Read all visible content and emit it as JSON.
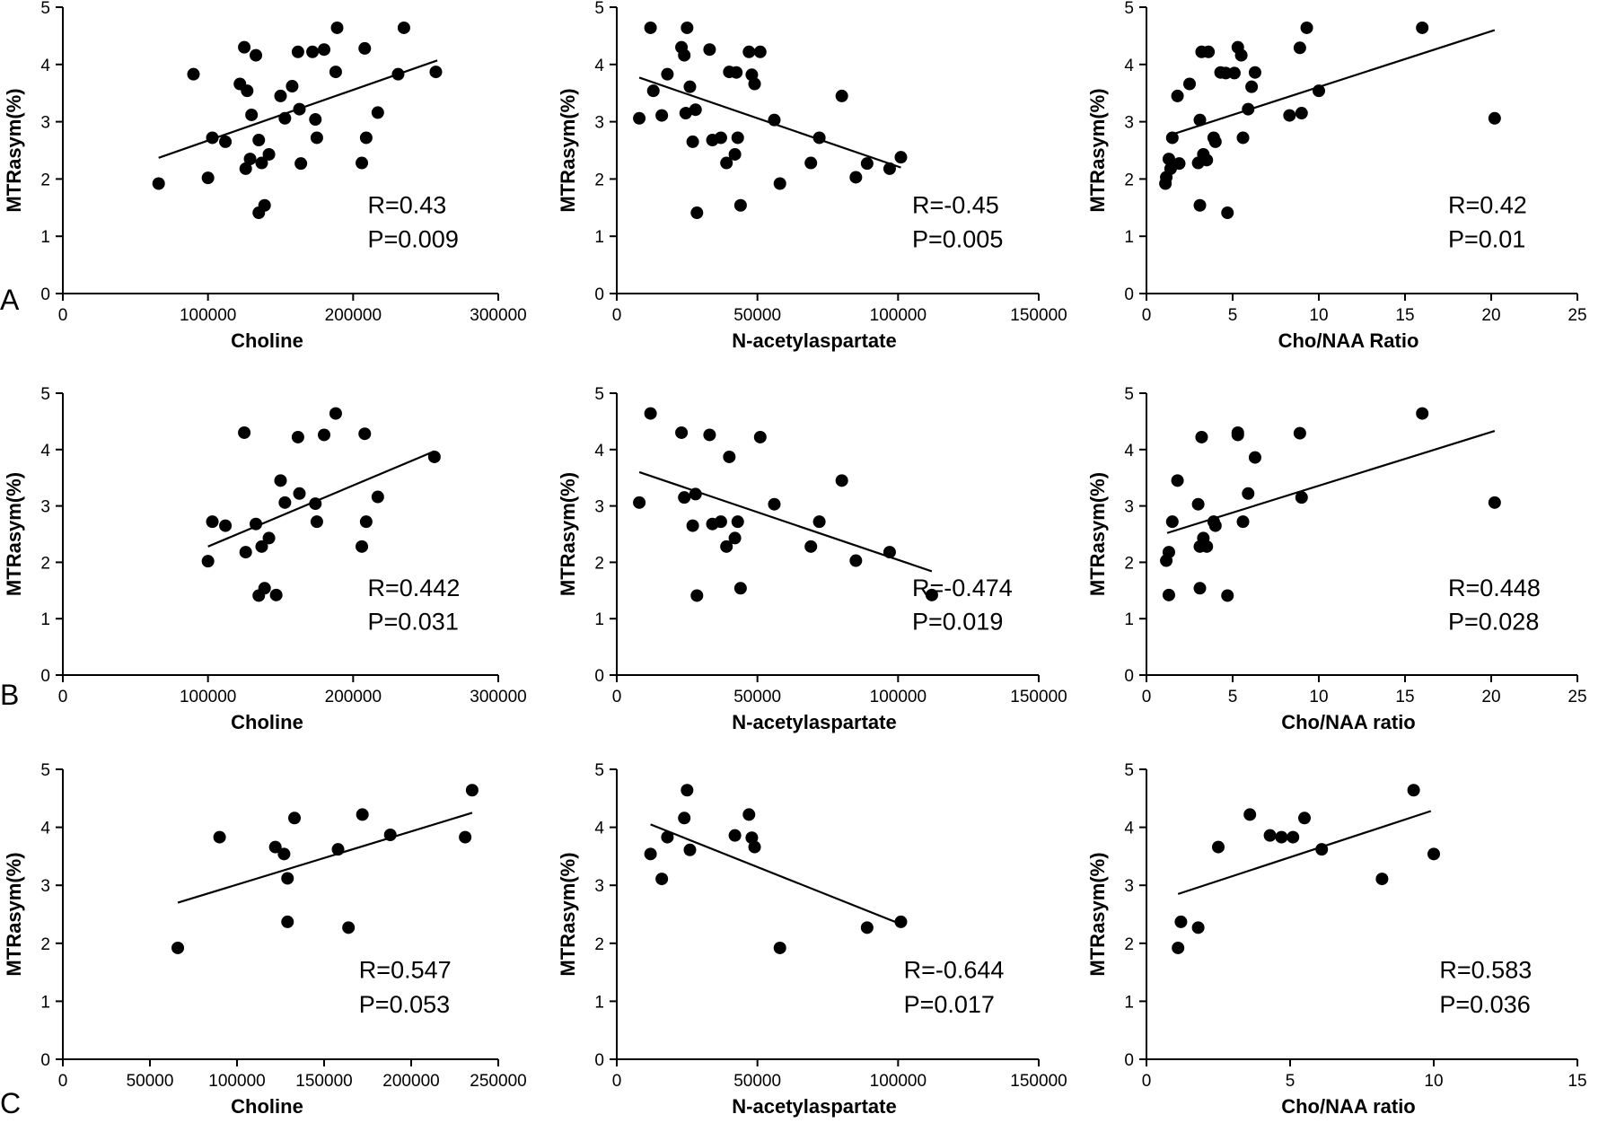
{
  "row_labels": [
    "A",
    "B",
    "C"
  ],
  "chart_data": [
    {
      "type": "scatter",
      "row": "A",
      "xlabel": "Choline",
      "ylabel": "MTRasym(%)",
      "xlim": [
        0,
        300000
      ],
      "ylim": [
        0,
        5
      ],
      "xticks": [
        0,
        100000,
        200000,
        300000
      ],
      "yticks": [
        0,
        1,
        2,
        3,
        4,
        5
      ],
      "r_text": "R=0.43",
      "p_text": "P=0.009",
      "fit": [
        [
          66000,
          2.37
        ],
        [
          258000,
          4.07
        ]
      ],
      "points": [
        [
          66000,
          1.92
        ],
        [
          90000,
          3.83
        ],
        [
          100000,
          2.02
        ],
        [
          103000,
          2.72
        ],
        [
          112000,
          2.65
        ],
        [
          122000,
          3.66
        ],
        [
          125000,
          4.3
        ],
        [
          126000,
          2.18
        ],
        [
          127000,
          3.54
        ],
        [
          129000,
          2.35
        ],
        [
          130000,
          3.12
        ],
        [
          133000,
          4.16
        ],
        [
          135000,
          2.68
        ],
        [
          135000,
          1.41
        ],
        [
          137000,
          2.28
        ],
        [
          139000,
          1.54
        ],
        [
          142000,
          2.43
        ],
        [
          150000,
          3.45
        ],
        [
          153000,
          3.06
        ],
        [
          158000,
          3.62
        ],
        [
          162000,
          4.22
        ],
        [
          163000,
          3.22
        ],
        [
          164000,
          2.27
        ],
        [
          172000,
          4.22
        ],
        [
          174000,
          3.04
        ],
        [
          175000,
          2.72
        ],
        [
          180000,
          4.26
        ],
        [
          188000,
          3.87
        ],
        [
          189000,
          4.64
        ],
        [
          206000,
          2.28
        ],
        [
          208000,
          4.28
        ],
        [
          209000,
          2.72
        ],
        [
          217000,
          3.16
        ],
        [
          231000,
          3.83
        ],
        [
          235000,
          4.64
        ],
        [
          257000,
          3.87
        ]
      ]
    },
    {
      "type": "scatter",
      "row": "A",
      "xlabel": "N-acetylaspartate",
      "ylabel": "MTRasym(%)",
      "xlim": [
        0,
        150000
      ],
      "ylim": [
        0,
        5
      ],
      "xticks": [
        0,
        50000,
        100000,
        150000
      ],
      "yticks": [
        0,
        1,
        2,
        3,
        4,
        5
      ],
      "r_text": "R=-0.45",
      "p_text": "P=0.005",
      "fit": [
        [
          8000,
          3.77
        ],
        [
          101000,
          2.2
        ]
      ],
      "points": [
        [
          8000,
          3.06
        ],
        [
          12000,
          4.64
        ],
        [
          13000,
          3.54
        ],
        [
          16000,
          3.11
        ],
        [
          18000,
          3.83
        ],
        [
          23000,
          4.3
        ],
        [
          24000,
          4.16
        ],
        [
          24500,
          3.15
        ],
        [
          25000,
          4.64
        ],
        [
          26000,
          3.61
        ],
        [
          27000,
          2.65
        ],
        [
          28000,
          3.21
        ],
        [
          28500,
          1.41
        ],
        [
          33000,
          4.26
        ],
        [
          34000,
          2.68
        ],
        [
          37000,
          2.72
        ],
        [
          39000,
          2.28
        ],
        [
          40000,
          3.87
        ],
        [
          42000,
          2.43
        ],
        [
          42500,
          3.86
        ],
        [
          43000,
          2.72
        ],
        [
          44000,
          1.54
        ],
        [
          47000,
          4.22
        ],
        [
          48000,
          3.82
        ],
        [
          49000,
          3.66
        ],
        [
          51000,
          4.22
        ],
        [
          56000,
          3.03
        ],
        [
          58000,
          1.92
        ],
        [
          69000,
          2.28
        ],
        [
          72000,
          2.72
        ],
        [
          80000,
          3.45
        ],
        [
          85000,
          2.03
        ],
        [
          89000,
          2.27
        ],
        [
          97000,
          2.18
        ],
        [
          101000,
          2.38
        ]
      ]
    },
    {
      "type": "scatter",
      "row": "A",
      "xlabel": "Cho/NAA Ratio",
      "ylabel": "MTRasym(%)",
      "xlim": [
        0,
        25
      ],
      "ylim": [
        0,
        5
      ],
      "xticks": [
        0,
        5,
        10,
        15,
        20,
        25
      ],
      "yticks": [
        0,
        1,
        2,
        3,
        4,
        5
      ],
      "r_text": "R=0.42",
      "p_text": "P=0.01",
      "fit": [
        [
          1.2,
          2.75
        ],
        [
          20.2,
          4.6
        ]
      ],
      "points": [
        [
          1.1,
          1.92
        ],
        [
          1.15,
          2.03
        ],
        [
          1.3,
          2.35
        ],
        [
          1.4,
          2.18
        ],
        [
          1.5,
          2.72
        ],
        [
          1.8,
          3.45
        ],
        [
          1.9,
          2.27
        ],
        [
          2.5,
          3.66
        ],
        [
          3.0,
          2.28
        ],
        [
          3.1,
          3.03
        ],
        [
          3.1,
          1.54
        ],
        [
          3.2,
          4.22
        ],
        [
          3.3,
          2.43
        ],
        [
          3.5,
          2.33
        ],
        [
          3.6,
          4.22
        ],
        [
          3.9,
          2.72
        ],
        [
          4.0,
          2.65
        ],
        [
          4.3,
          3.86
        ],
        [
          4.6,
          3.85
        ],
        [
          4.7,
          1.41
        ],
        [
          5.1,
          3.85
        ],
        [
          5.3,
          4.3
        ],
        [
          5.5,
          4.16
        ],
        [
          5.6,
          2.72
        ],
        [
          5.9,
          3.22
        ],
        [
          6.1,
          3.61
        ],
        [
          6.3,
          3.86
        ],
        [
          8.3,
          3.11
        ],
        [
          8.9,
          4.29
        ],
        [
          9.0,
          3.15
        ],
        [
          9.3,
          4.64
        ],
        [
          10.0,
          3.54
        ],
        [
          16.0,
          4.64
        ],
        [
          20.2,
          3.06
        ]
      ]
    },
    {
      "type": "scatter",
      "row": "B",
      "xlabel": "Choline",
      "ylabel": "MTRasym(%)",
      "xlim": [
        0,
        300000
      ],
      "ylim": [
        0,
        5
      ],
      "xticks": [
        0,
        100000,
        200000,
        300000
      ],
      "yticks": [
        0,
        1,
        2,
        3,
        4,
        5
      ],
      "r_text": "R=0.442",
      "p_text": "P=0.031",
      "fit": [
        [
          100000,
          2.28
        ],
        [
          256000,
          3.97
        ]
      ],
      "points": [
        [
          100000,
          2.02
        ],
        [
          103000,
          2.72
        ],
        [
          112000,
          2.65
        ],
        [
          125000,
          4.3
        ],
        [
          126000,
          2.18
        ],
        [
          133000,
          2.68
        ],
        [
          135000,
          1.41
        ],
        [
          137000,
          2.28
        ],
        [
          139000,
          1.54
        ],
        [
          142000,
          2.43
        ],
        [
          147000,
          1.42
        ],
        [
          150000,
          3.45
        ],
        [
          153000,
          3.06
        ],
        [
          162000,
          4.22
        ],
        [
          163000,
          3.22
        ],
        [
          174000,
          3.04
        ],
        [
          175000,
          2.72
        ],
        [
          180000,
          4.26
        ],
        [
          188000,
          4.64
        ],
        [
          206000,
          2.28
        ],
        [
          208000,
          4.28
        ],
        [
          209000,
          2.72
        ],
        [
          217000,
          3.16
        ],
        [
          256000,
          3.87
        ]
      ]
    },
    {
      "type": "scatter",
      "row": "B",
      "xlabel": "N-acetylaspartate",
      "ylabel": "MTRasym(%)",
      "xlim": [
        0,
        150000
      ],
      "ylim": [
        0,
        5
      ],
      "xticks": [
        0,
        50000,
        100000,
        150000
      ],
      "yticks": [
        0,
        1,
        2,
        3,
        4,
        5
      ],
      "r_text": "R=-0.474",
      "p_text": "P=0.019",
      "fit": [
        [
          8000,
          3.6
        ],
        [
          112000,
          1.84
        ]
      ],
      "points": [
        [
          8000,
          3.06
        ],
        [
          12000,
          4.64
        ],
        [
          23000,
          4.3
        ],
        [
          24000,
          3.15
        ],
        [
          27000,
          2.65
        ],
        [
          28000,
          3.21
        ],
        [
          28500,
          1.41
        ],
        [
          33000,
          4.26
        ],
        [
          34000,
          2.68
        ],
        [
          37000,
          2.72
        ],
        [
          39000,
          2.28
        ],
        [
          40000,
          3.87
        ],
        [
          42000,
          2.43
        ],
        [
          43000,
          2.72
        ],
        [
          44000,
          1.54
        ],
        [
          51000,
          4.22
        ],
        [
          56000,
          3.03
        ],
        [
          69000,
          2.28
        ],
        [
          72000,
          2.72
        ],
        [
          80000,
          3.45
        ],
        [
          85000,
          2.03
        ],
        [
          97000,
          2.18
        ],
        [
          112000,
          1.42
        ]
      ]
    },
    {
      "type": "scatter",
      "row": "B",
      "xlabel": "Cho/NAA ratio",
      "ylabel": "MTRasym(%)",
      "xlim": [
        0,
        25
      ],
      "ylim": [
        0,
        5
      ],
      "xticks": [
        0,
        5,
        10,
        15,
        20,
        25
      ],
      "yticks": [
        0,
        1,
        2,
        3,
        4,
        5
      ],
      "r_text": "R=0.448",
      "p_text": "P=0.028",
      "fit": [
        [
          1.2,
          2.52
        ],
        [
          20.2,
          4.33
        ]
      ],
      "points": [
        [
          1.15,
          2.03
        ],
        [
          1.3,
          2.18
        ],
        [
          1.3,
          1.42
        ],
        [
          1.5,
          2.72
        ],
        [
          1.8,
          3.45
        ],
        [
          3.0,
          3.03
        ],
        [
          3.1,
          2.28
        ],
        [
          3.1,
          1.54
        ],
        [
          3.2,
          4.22
        ],
        [
          3.3,
          2.43
        ],
        [
          3.5,
          2.28
        ],
        [
          3.9,
          2.72
        ],
        [
          4.0,
          2.65
        ],
        [
          4.7,
          1.41
        ],
        [
          5.3,
          4.3
        ],
        [
          5.3,
          4.26
        ],
        [
          5.6,
          2.72
        ],
        [
          5.9,
          3.22
        ],
        [
          6.3,
          3.86
        ],
        [
          8.9,
          4.29
        ],
        [
          9.0,
          3.15
        ],
        [
          16.0,
          4.64
        ],
        [
          20.2,
          3.06
        ]
      ]
    },
    {
      "type": "scatter",
      "row": "C",
      "xlabel": "Choline",
      "ylabel": "MTRasym(%)",
      "xlim": [
        0,
        250000
      ],
      "ylim": [
        0,
        5
      ],
      "xticks": [
        0,
        50000,
        100000,
        150000,
        200000,
        250000
      ],
      "yticks": [
        0,
        1,
        2,
        3,
        4,
        5
      ],
      "r_text": "R=0.547",
      "p_text": "P=0.053",
      "fit": [
        [
          66000,
          2.7
        ],
        [
          235000,
          4.25
        ]
      ],
      "points": [
        [
          66000,
          1.92
        ],
        [
          90000,
          3.83
        ],
        [
          122000,
          3.66
        ],
        [
          127000,
          3.54
        ],
        [
          129000,
          3.12
        ],
        [
          129000,
          2.37
        ],
        [
          133000,
          4.16
        ],
        [
          158000,
          3.62
        ],
        [
          164000,
          2.27
        ],
        [
          172000,
          4.22
        ],
        [
          188000,
          3.87
        ],
        [
          231000,
          3.83
        ],
        [
          235000,
          4.64
        ]
      ]
    },
    {
      "type": "scatter",
      "row": "C",
      "xlabel": "N-acetylaspartate",
      "ylabel": "MTRasym(%)",
      "xlim": [
        0,
        150000
      ],
      "ylim": [
        0,
        5
      ],
      "xticks": [
        0,
        50000,
        100000,
        150000
      ],
      "yticks": [
        0,
        1,
        2,
        3,
        4,
        5
      ],
      "r_text": "R=-0.644",
      "p_text": "P=0.017",
      "fit": [
        [
          12000,
          4.05
        ],
        [
          101000,
          2.33
        ]
      ],
      "points": [
        [
          12000,
          3.54
        ],
        [
          16000,
          3.11
        ],
        [
          18000,
          3.83
        ],
        [
          24000,
          4.16
        ],
        [
          25000,
          4.64
        ],
        [
          26000,
          3.61
        ],
        [
          42000,
          3.86
        ],
        [
          47000,
          4.22
        ],
        [
          48000,
          3.82
        ],
        [
          49000,
          3.66
        ],
        [
          58000,
          1.92
        ],
        [
          89000,
          2.27
        ],
        [
          101000,
          2.37
        ]
      ]
    },
    {
      "type": "scatter",
      "row": "C",
      "xlabel": "Cho/NAA ratio",
      "ylabel": "MTRasym(%)",
      "xlim": [
        0,
        15
      ],
      "ylim": [
        0,
        5
      ],
      "xticks": [
        0,
        5,
        10,
        15
      ],
      "yticks": [
        0,
        1,
        2,
        3,
        4,
        5
      ],
      "r_text": "R=0.583",
      "p_text": "P=0.036",
      "fit": [
        [
          1.1,
          2.85
        ],
        [
          9.9,
          4.28
        ]
      ],
      "points": [
        [
          1.1,
          1.92
        ],
        [
          1.2,
          2.37
        ],
        [
          1.8,
          2.27
        ],
        [
          2.5,
          3.66
        ],
        [
          3.6,
          4.22
        ],
        [
          4.3,
          3.86
        ],
        [
          4.7,
          3.83
        ],
        [
          5.1,
          3.83
        ],
        [
          5.5,
          4.16
        ],
        [
          6.1,
          3.62
        ],
        [
          8.2,
          3.11
        ],
        [
          9.3,
          4.64
        ],
        [
          10.0,
          3.54
        ]
      ]
    }
  ]
}
